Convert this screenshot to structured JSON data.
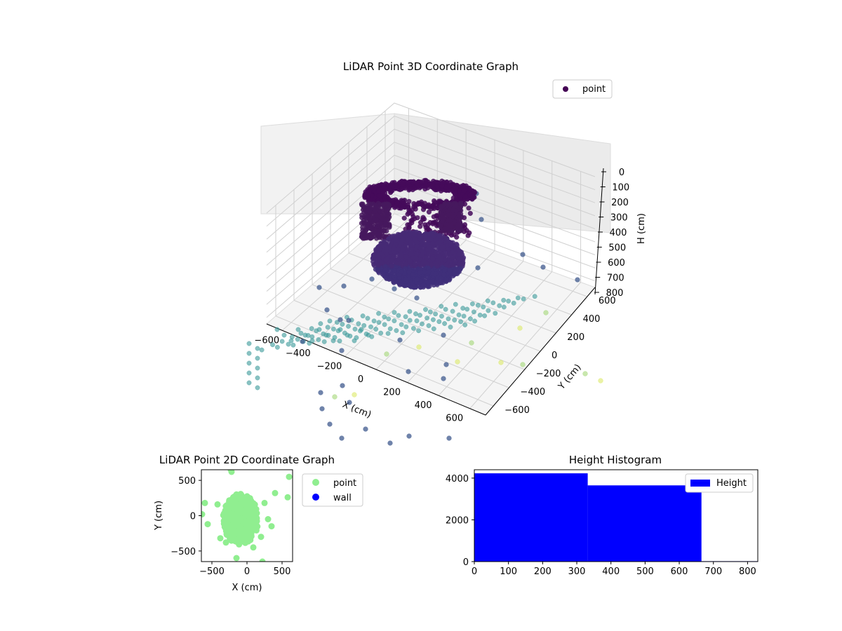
{
  "chart_data": [
    {
      "type": "scatter",
      "projection": "3d",
      "title": "LiDAR Point 3D Coordinate Graph",
      "xlabel": "X (cm)",
      "ylabel": "Y (cm)",
      "zlabel": "H (cm)",
      "xlim": [
        -700,
        700
      ],
      "ylim": [
        -700,
        700
      ],
      "zlim": [
        850,
        0
      ],
      "xticks": [
        -600,
        -400,
        -200,
        0,
        200,
        400,
        600
      ],
      "yticks": [
        -600,
        -400,
        -200,
        0,
        200,
        400,
        600
      ],
      "zticks": [
        0,
        100,
        200,
        300,
        400,
        500,
        600,
        700,
        800
      ],
      "zaxis_inverted": true,
      "grid": true,
      "legend": {
        "entries": [
          "point"
        ],
        "position": "upper-right"
      },
      "colormap": "viridis",
      "series": [
        {
          "name": "point",
          "marker_color": "#440154"
        }
      ]
    },
    {
      "type": "scatter",
      "title": "LiDAR Point 2D Coordinate Graph",
      "xlabel": "X (cm)",
      "ylabel": "Y (cm)",
      "xlim": [
        -650,
        650
      ],
      "ylim": [
        -650,
        650
      ],
      "xticks": [
        -500,
        0,
        500
      ],
      "yticks": [
        -500,
        0,
        500
      ],
      "legend": {
        "entries": [
          "point",
          "wall"
        ],
        "position": "outside-right"
      },
      "series": [
        {
          "name": "point",
          "color": "#90ee90",
          "points": [
            [
              -600,
              180
            ],
            [
              -560,
              -120
            ],
            [
              -230,
              650
            ],
            [
              -220,
              620
            ],
            [
              -150,
              300
            ],
            [
              250,
              180
            ],
            [
              300,
              -50
            ],
            [
              350,
              -150
            ],
            [
              200,
              -300
            ],
            [
              90,
              -450
            ],
            [
              -150,
              -600
            ],
            [
              -300,
              -380
            ],
            [
              220,
              -650
            ],
            [
              400,
              320
            ],
            [
              580,
              260
            ],
            [
              600,
              550
            ],
            [
              -640,
              20
            ],
            [
              -420,
              160
            ],
            [
              -380,
              -320
            ]
          ]
        },
        {
          "name": "wall",
          "color": "#0000ff",
          "points": []
        }
      ]
    },
    {
      "type": "bar",
      "title": "Height Histogram",
      "xlim": [
        0,
        830
      ],
      "ylim": [
        0,
        4400
      ],
      "xticks": [
        0,
        100,
        200,
        300,
        400,
        500,
        600,
        700,
        800
      ],
      "yticks": [
        0,
        2000,
        4000
      ],
      "legend": {
        "entries": [
          "Height"
        ],
        "position": "upper-right"
      },
      "series": [
        {
          "name": "Height",
          "color": "#0000ff",
          "bins": [
            [
              0,
              332,
              4230
            ],
            [
              332,
              665,
              3650
            ],
            [
              665,
              830,
              20
            ]
          ]
        }
      ]
    }
  ]
}
